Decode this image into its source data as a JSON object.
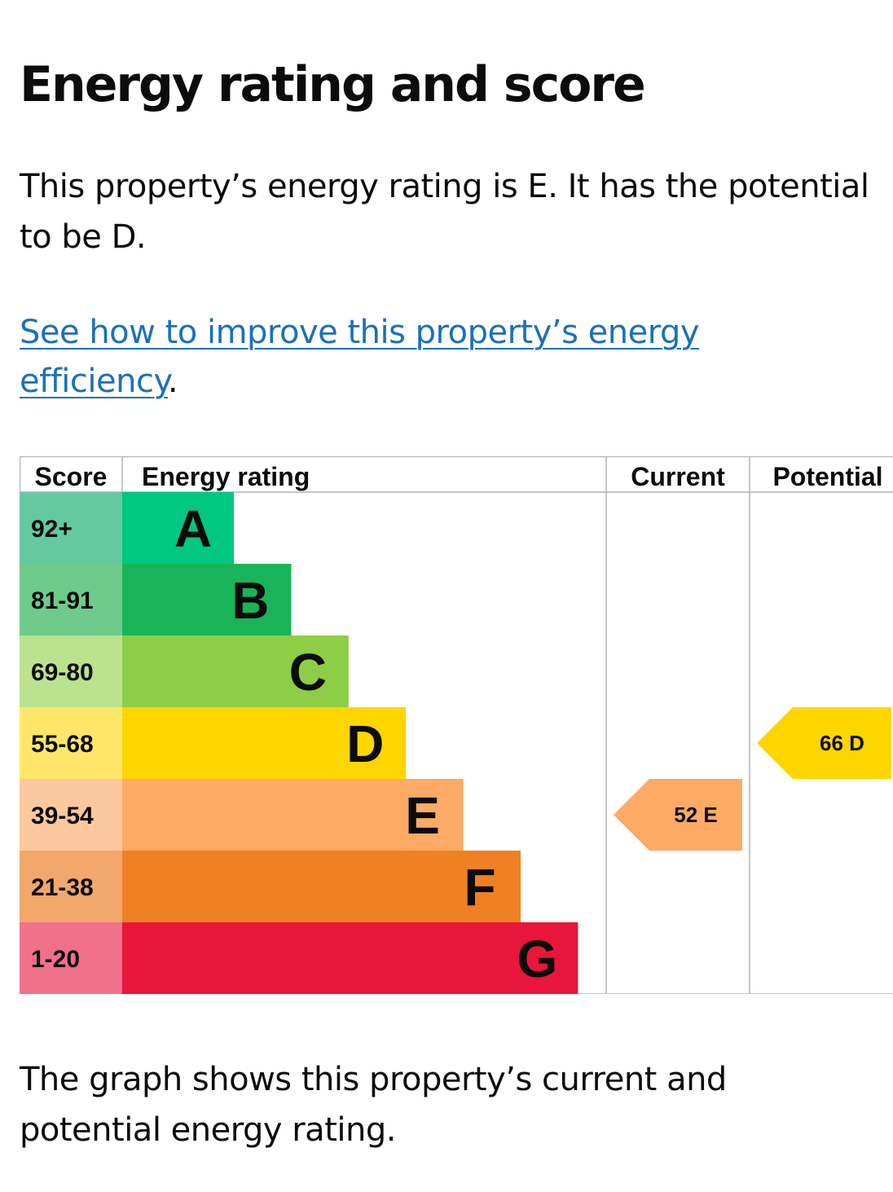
{
  "heading": "Energy rating and score",
  "intro": {
    "line1": "This property’s energy rating is E. It has the potential",
    "line2": "to be D."
  },
  "improve_link": {
    "line1": "See how to improve this property’s energy",
    "line2": "efficiency",
    "trailing": "."
  },
  "chart_data": {
    "type": "bar",
    "headers": {
      "score": "Score",
      "rating": "Energy rating",
      "current": "Current",
      "potential": "Potential"
    },
    "bands": [
      {
        "letter": "A",
        "score": "92+",
        "color": "#00c781",
        "score_bg": "#64c9a1"
      },
      {
        "letter": "B",
        "score": "81-91",
        "color": "#19b459",
        "score_bg": "#6fcb8b"
      },
      {
        "letter": "C",
        "score": "69-80",
        "color": "#8dce46",
        "score_bg": "#bbe28e"
      },
      {
        "letter": "D",
        "score": "55-68",
        "color": "#ffd500",
        "score_bg": "#ffe66b"
      },
      {
        "letter": "E",
        "score": "39-54",
        "color": "#fcaa65",
        "score_bg": "#fec89e"
      },
      {
        "letter": "F",
        "score": "21-38",
        "color": "#ef8023",
        "score_bg": "#f3a76b"
      },
      {
        "letter": "G",
        "score": "1-20",
        "color": "#e9153b",
        "score_bg": "#f0718a"
      }
    ],
    "current": {
      "score": 52,
      "rating": "E",
      "label": "52  E"
    },
    "potential": {
      "score": 66,
      "rating": "D",
      "label": "66  D"
    }
  },
  "caption": {
    "line1": "The graph shows this property’s current and",
    "line2": "potential energy rating."
  }
}
